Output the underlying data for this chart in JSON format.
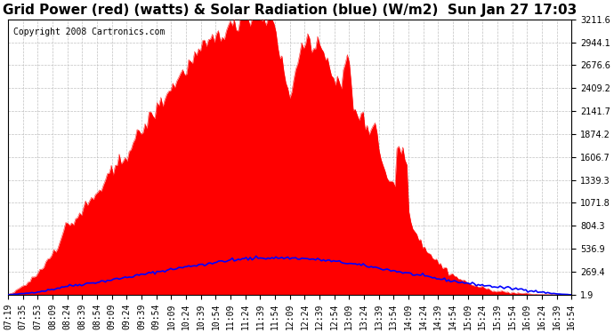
{
  "title": "Grid Power (red) (watts) & Solar Radiation (blue) (W/m2)  Sun Jan 27 17:03",
  "copyright": "Copyright 2008 Cartronics.com",
  "yticks": [
    1.9,
    269.4,
    536.9,
    804.3,
    1071.8,
    1339.3,
    1606.7,
    1874.2,
    2141.7,
    2409.2,
    2676.6,
    2944.1,
    3211.6
  ],
  "ymin": 1.9,
  "ymax": 3211.6,
  "xtick_labels": [
    "07:19",
    "07:35",
    "07:53",
    "08:09",
    "08:24",
    "08:39",
    "08:54",
    "09:09",
    "09:24",
    "09:39",
    "09:54",
    "10:09",
    "10:24",
    "10:39",
    "10:54",
    "11:09",
    "11:24",
    "11:39",
    "11:54",
    "12:09",
    "12:24",
    "12:39",
    "12:54",
    "13:09",
    "13:24",
    "13:39",
    "13:54",
    "14:09",
    "14:24",
    "14:39",
    "14:54",
    "15:09",
    "15:24",
    "15:39",
    "15:54",
    "16:09",
    "16:24",
    "16:39",
    "16:54"
  ],
  "background_color": "#ffffff",
  "plot_bg_color": "#ffffff",
  "grid_color": "#c0c0c0",
  "red_color": "#ff0000",
  "blue_color": "#0000ff",
  "title_fontsize": 11,
  "copyright_fontsize": 7,
  "tick_fontsize": 7
}
